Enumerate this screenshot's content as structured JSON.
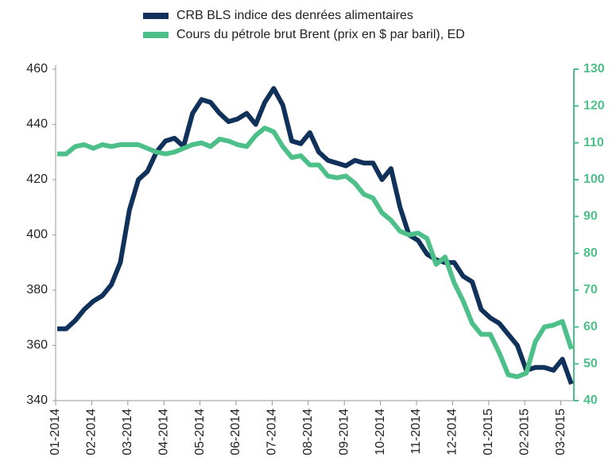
{
  "chart_data": {
    "type": "line",
    "categories": [
      "01-2014",
      null,
      null,
      null,
      "02-2014",
      null,
      null,
      null,
      "03-2014",
      null,
      null,
      null,
      "04-2014",
      null,
      null,
      null,
      "05-2014",
      null,
      null,
      null,
      "06-2014",
      null,
      null,
      null,
      "07-2014",
      null,
      null,
      null,
      "08-2014",
      null,
      null,
      null,
      "09-2014",
      null,
      null,
      null,
      "10-2014",
      null,
      null,
      null,
      "11-2014",
      null,
      null,
      null,
      "12-2014",
      null,
      null,
      null,
      "01-2015",
      null,
      null,
      null,
      "02-2015",
      null,
      null,
      null,
      "03-2015",
      null
    ],
    "series": [
      {
        "name": "CRB BLS indice des denrées alimentaires",
        "color": "#10315a",
        "axis": "y",
        "values": [
          366,
          366,
          369,
          373,
          376,
          378,
          382,
          390,
          409,
          420,
          423,
          430,
          434,
          435,
          432,
          444,
          449,
          448,
          444,
          441,
          442,
          444,
          440,
          448,
          453,
          447,
          434,
          433,
          437,
          430,
          427,
          426,
          425,
          427,
          426,
          426,
          420,
          424,
          410,
          400,
          398,
          393,
          391,
          390,
          390,
          385,
          383,
          373,
          370,
          368,
          364,
          360,
          351,
          352,
          352,
          351,
          355,
          346
        ]
      },
      {
        "name": "Cours du pétrole brut Brent (prix en $ par baril), ED",
        "color": "#4dbf88",
        "axis": "y2",
        "values": [
          107,
          107,
          109,
          109.5,
          108.5,
          109.5,
          109,
          109.5,
          109.5,
          109.5,
          108.5,
          107.5,
          107,
          107.5,
          108.5,
          109.5,
          110,
          109,
          111,
          110.5,
          109.5,
          109,
          112,
          114,
          113,
          109,
          106,
          106.5,
          104,
          104,
          101,
          100.5,
          101,
          99,
          96,
          95,
          91,
          89,
          86,
          85,
          85.5,
          84,
          77,
          79,
          72,
          67,
          61,
          58,
          58,
          53,
          47,
          46.5,
          47.5,
          56,
          60,
          60.5,
          61.5,
          54
        ]
      }
    ],
    "ylim": [
      340,
      460
    ],
    "yticks": [
      340,
      360,
      380,
      400,
      420,
      440,
      460
    ],
    "y2lim": [
      40,
      130
    ],
    "y2ticks": [
      40,
      50,
      60,
      70,
      80,
      90,
      100,
      110,
      120,
      130
    ],
    "grid": false
  }
}
